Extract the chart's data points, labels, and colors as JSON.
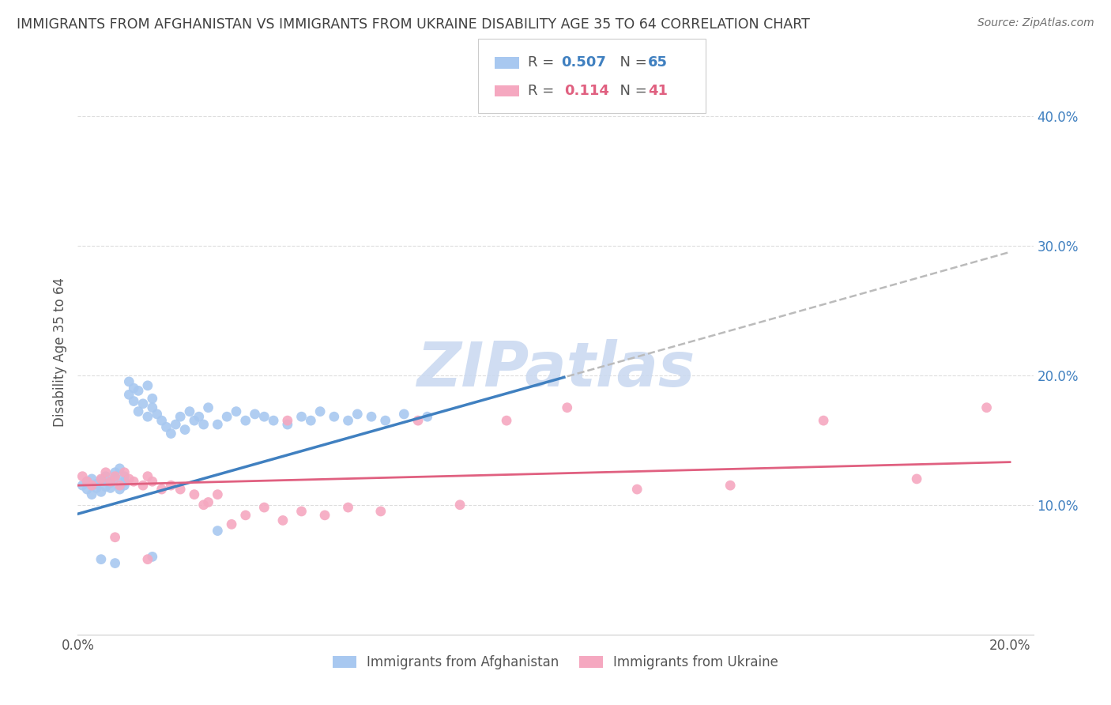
{
  "title": "IMMIGRANTS FROM AFGHANISTAN VS IMMIGRANTS FROM UKRAINE DISABILITY AGE 35 TO 64 CORRELATION CHART",
  "source": "Source: ZipAtlas.com",
  "ylabel": "Disability Age 35 to 64",
  "legend_r1": "R = 0.507",
  "legend_n1": "N = 65",
  "legend_r2": "R =  0.114",
  "legend_n2": "N = 41",
  "color_afghanistan": "#A8C8F0",
  "color_ukraine": "#F5A8C0",
  "color_line_afghanistan": "#4080C0",
  "color_line_ukraine": "#E06080",
  "color_title": "#404040",
  "color_source": "#707070",
  "color_watermark": "#C8D8F0",
  "watermark_text": "ZIPatlas",
  "background_color": "#FFFFFF",
  "grid_color": "#DDDDDD",
  "xlim": [
    0.0,
    0.205
  ],
  "ylim": [
    0.0,
    0.435
  ],
  "afg_line_x0": 0.0,
  "afg_line_y0": 0.093,
  "afg_line_x1": 0.2,
  "afg_line_y1": 0.295,
  "ukr_line_x0": 0.0,
  "ukr_line_y0": 0.115,
  "ukr_line_x1": 0.2,
  "ukr_line_y1": 0.133,
  "afghanistan_x": [
    0.001,
    0.002,
    0.002,
    0.003,
    0.003,
    0.004,
    0.004,
    0.005,
    0.005,
    0.006,
    0.006,
    0.007,
    0.007,
    0.008,
    0.008,
    0.009,
    0.009,
    0.01,
    0.01,
    0.01,
    0.011,
    0.011,
    0.012,
    0.012,
    0.013,
    0.013,
    0.014,
    0.015,
    0.015,
    0.016,
    0.016,
    0.017,
    0.018,
    0.019,
    0.02,
    0.021,
    0.022,
    0.023,
    0.024,
    0.025,
    0.026,
    0.027,
    0.028,
    0.03,
    0.032,
    0.034,
    0.036,
    0.038,
    0.04,
    0.042,
    0.045,
    0.048,
    0.05,
    0.052,
    0.055,
    0.058,
    0.06,
    0.063,
    0.066,
    0.07,
    0.075,
    0.03,
    0.016,
    0.008,
    0.005
  ],
  "afghanistan_y": [
    0.115,
    0.118,
    0.112,
    0.12,
    0.108,
    0.113,
    0.116,
    0.119,
    0.11,
    0.122,
    0.114,
    0.117,
    0.113,
    0.125,
    0.12,
    0.128,
    0.112,
    0.118,
    0.122,
    0.115,
    0.195,
    0.185,
    0.19,
    0.18,
    0.188,
    0.172,
    0.178,
    0.192,
    0.168,
    0.182,
    0.175,
    0.17,
    0.165,
    0.16,
    0.155,
    0.162,
    0.168,
    0.158,
    0.172,
    0.165,
    0.168,
    0.162,
    0.175,
    0.162,
    0.168,
    0.172,
    0.165,
    0.17,
    0.168,
    0.165,
    0.162,
    0.168,
    0.165,
    0.172,
    0.168,
    0.165,
    0.17,
    0.168,
    0.165,
    0.17,
    0.168,
    0.08,
    0.06,
    0.055,
    0.058
  ],
  "ukraine_x": [
    0.001,
    0.002,
    0.003,
    0.005,
    0.006,
    0.007,
    0.008,
    0.009,
    0.01,
    0.011,
    0.012,
    0.014,
    0.015,
    0.016,
    0.018,
    0.02,
    0.022,
    0.025,
    0.027,
    0.03,
    0.033,
    0.036,
    0.04,
    0.044,
    0.048,
    0.053,
    0.058,
    0.065,
    0.073,
    0.082,
    0.092,
    0.105,
    0.12,
    0.14,
    0.16,
    0.18,
    0.195,
    0.045,
    0.028,
    0.015,
    0.008
  ],
  "ukraine_y": [
    0.122,
    0.118,
    0.115,
    0.12,
    0.125,
    0.118,
    0.122,
    0.115,
    0.125,
    0.12,
    0.118,
    0.115,
    0.122,
    0.118,
    0.112,
    0.115,
    0.112,
    0.108,
    0.1,
    0.108,
    0.085,
    0.092,
    0.098,
    0.088,
    0.095,
    0.092,
    0.098,
    0.095,
    0.165,
    0.1,
    0.165,
    0.175,
    0.112,
    0.115,
    0.165,
    0.12,
    0.175,
    0.165,
    0.102,
    0.058,
    0.075
  ]
}
